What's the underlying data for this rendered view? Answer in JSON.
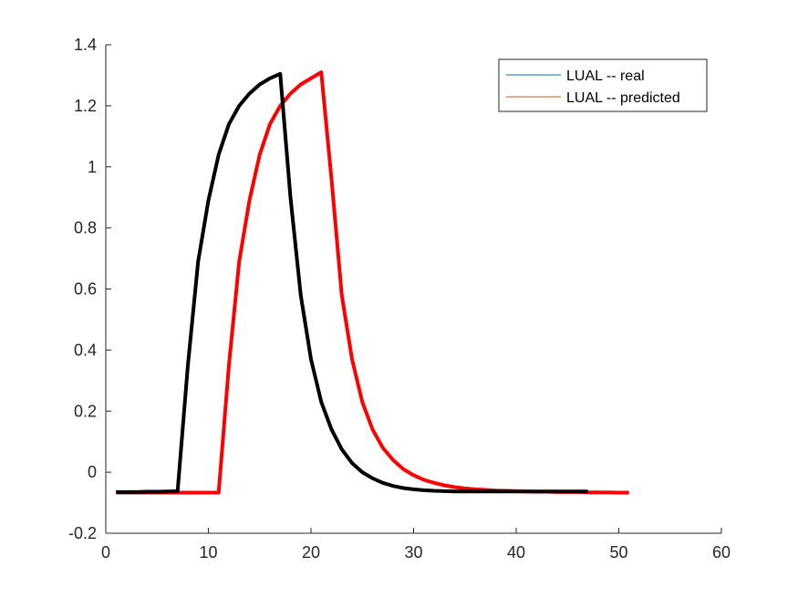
{
  "chart_data": {
    "type": "line",
    "title": "",
    "xlabel": "",
    "ylabel": "",
    "xlim": [
      0,
      60
    ],
    "ylim": [
      -0.2,
      1.4
    ],
    "xticks": [
      0,
      10,
      20,
      30,
      40,
      50,
      60
    ],
    "yticks": [
      -0.2,
      0,
      0.2,
      0.4,
      0.6,
      0.8,
      1,
      1.2,
      1.4
    ],
    "xtick_labels": [
      "0",
      "10",
      "20",
      "30",
      "40",
      "50",
      "60"
    ],
    "ytick_labels": [
      "-0.2",
      "0",
      "0.2",
      "0.4",
      "0.6",
      "0.8",
      "1",
      "1.2",
      "1.4"
    ],
    "grid": false,
    "legend_position": "top-right",
    "legend": [
      {
        "label": "LUAL -- real",
        "color": "#0072BD"
      },
      {
        "label": "LUAL -- predicted",
        "color": "#D95319"
      }
    ],
    "series": [
      {
        "name": "LUAL -- real",
        "legend_color": "#0072BD",
        "plotted_color": "#000000",
        "x": [
          1,
          2,
          3,
          4,
          5,
          6,
          7,
          8,
          9,
          10,
          11,
          12,
          13,
          14,
          15,
          16,
          17,
          18,
          19,
          20,
          21,
          22,
          23,
          24,
          25,
          26,
          27,
          28,
          29,
          30,
          31,
          32,
          33,
          34,
          35,
          36,
          37,
          38,
          39,
          40,
          41,
          42,
          43,
          44,
          45,
          46,
          47
        ],
        "y": [
          -0.065,
          -0.065,
          -0.065,
          -0.064,
          -0.064,
          -0.063,
          -0.062,
          0.35,
          0.69,
          0.89,
          1.04,
          1.14,
          1.2,
          1.24,
          1.27,
          1.29,
          1.305,
          0.9,
          0.58,
          0.37,
          0.23,
          0.14,
          0.075,
          0.03,
          0.0,
          -0.02,
          -0.035,
          -0.045,
          -0.052,
          -0.056,
          -0.059,
          -0.061,
          -0.062,
          -0.063,
          -0.063,
          -0.063,
          -0.063,
          -0.063,
          -0.063,
          -0.063,
          -0.063,
          -0.063,
          -0.063,
          -0.063,
          -0.063,
          -0.063,
          -0.063
        ]
      },
      {
        "name": "LUAL -- predicted",
        "legend_color": "#D95319",
        "plotted_color": "#FF0000",
        "x": [
          1,
          2,
          3,
          4,
          5,
          6,
          7,
          8,
          9,
          10,
          11,
          12,
          13,
          14,
          15,
          16,
          17,
          18,
          19,
          20,
          21,
          22,
          23,
          24,
          25,
          26,
          27,
          28,
          29,
          30,
          31,
          32,
          33,
          34,
          35,
          36,
          37,
          38,
          39,
          40,
          41,
          42,
          43,
          44,
          45,
          46,
          47,
          48,
          49,
          50,
          51
        ],
        "y": [
          -0.067,
          -0.067,
          -0.067,
          -0.067,
          -0.067,
          -0.067,
          -0.067,
          -0.067,
          -0.067,
          -0.067,
          -0.067,
          0.35,
          0.69,
          0.89,
          1.04,
          1.14,
          1.2,
          1.24,
          1.27,
          1.29,
          1.31,
          0.96,
          0.58,
          0.37,
          0.23,
          0.14,
          0.08,
          0.04,
          0.01,
          -0.01,
          -0.025,
          -0.035,
          -0.043,
          -0.049,
          -0.053,
          -0.056,
          -0.058,
          -0.06,
          -0.061,
          -0.062,
          -0.063,
          -0.064,
          -0.064,
          -0.065,
          -0.065,
          -0.065,
          -0.066,
          -0.066,
          -0.066,
          -0.067,
          -0.067
        ]
      }
    ]
  }
}
